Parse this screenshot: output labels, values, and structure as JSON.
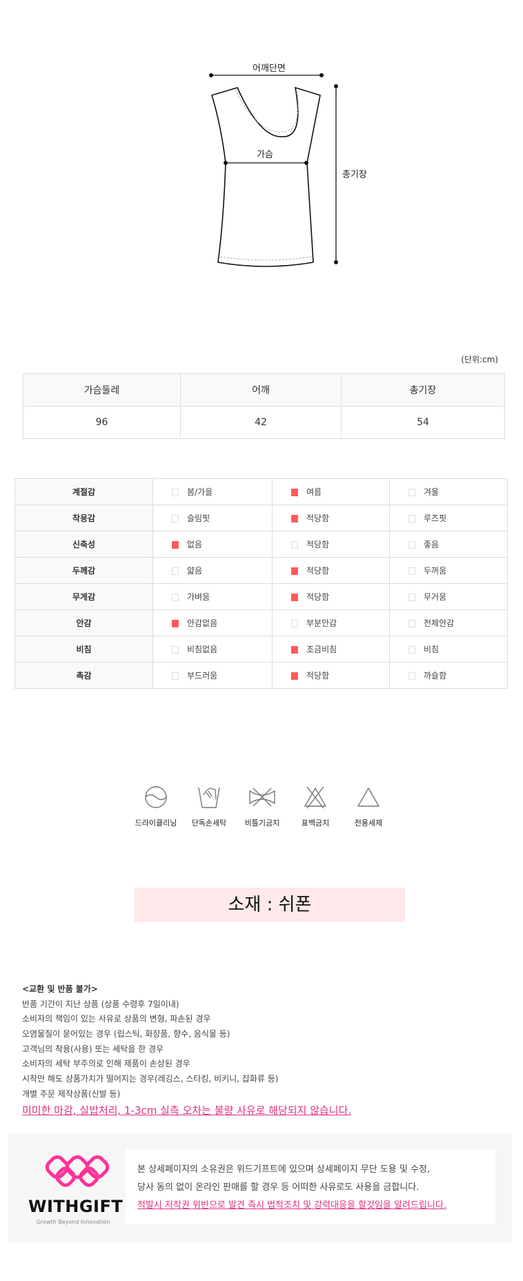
{
  "diagram": {
    "shoulder": "어깨단면",
    "chest": "가슴",
    "length": "총기장"
  },
  "size_table": {
    "unit": "(단위:cm)",
    "headers": [
      "가슴둘레",
      "어깨",
      "총기장"
    ],
    "values": [
      "96",
      "42",
      "54"
    ]
  },
  "spec_table": {
    "check_color": "#ff5a5a",
    "rows": [
      {
        "label": "계절감",
        "options": [
          "봄/가을",
          "여름",
          "겨울"
        ],
        "selected": 1
      },
      {
        "label": "착용감",
        "options": [
          "슬림핏",
          "적당함",
          "루즈핏"
        ],
        "selected": 1
      },
      {
        "label": "신축성",
        "options": [
          "없음",
          "적당함",
          "좋음"
        ],
        "selected": 0
      },
      {
        "label": "두께감",
        "options": [
          "얇음",
          "적당함",
          "두꺼움"
        ],
        "selected": 1
      },
      {
        "label": "무게감",
        "options": [
          "가벼움",
          "적당함",
          "무거움"
        ],
        "selected": 1
      },
      {
        "label": "안감",
        "options": [
          "안감없음",
          "부분안감",
          "전체안감"
        ],
        "selected": 0
      },
      {
        "label": "비침",
        "options": [
          "비침없음",
          "조금비침",
          "비침"
        ],
        "selected": 1
      },
      {
        "label": "촉감",
        "options": [
          "부드러움",
          "적당함",
          "까슬함"
        ],
        "selected": 1
      }
    ]
  },
  "care": [
    {
      "icon": "dry-clean-icon",
      "label": "드라이클리닝"
    },
    {
      "icon": "hand-wash-icon",
      "label": "단독손세탁"
    },
    {
      "icon": "no-wring-icon",
      "label": "비틀기금지"
    },
    {
      "icon": "no-bleach-icon",
      "label": "표백금지"
    },
    {
      "icon": "detergent-icon",
      "label": "전용세제"
    }
  ],
  "material": "소재 : 쉬폰",
  "notice": {
    "title": "<교환 및 반품 불가>",
    "lines": [
      "반품 기간이 지난 상품 (상품 수령후 7일이내)",
      "소비자의 책임이 있는 사유로 상품의 변형, 파손된 경우",
      "오염물질이 묻어있는 경우 (립스틱, 화장품, 향수, 음식물 등)",
      "고객님의 착용(사용) 또는 세탁을 한 경우",
      "소비자의 세탁 부주의로 인해 제품이 손상된 경우",
      "시착만 해도 상품가치가 떨어지는 경우(레깅스, 스타킹, 비키니, 잡화류 등)",
      "개별 주문 제작상품(신발 등)"
    ],
    "highlight": "미미한 마감, 실밥처리, 1-3cm 실측 오차는 불량 사유로 해당되지 않습니다."
  },
  "footer": {
    "brand": "WITHGIFT",
    "tagline": "Growth Beyond Innovation",
    "brand_color": "#ff3399",
    "lines": [
      "본 상세페이지의 소유권은 위드기프트에 있으며 상세페이지 무단 도용 및 수정,",
      "당사 동의 없이 온라인 판매를 할 경우 등 어떠한 사유로도 사용을 금합니다."
    ],
    "warning": "적발시 저작권 위반으로 발견 즉시 법적조치 및 강력대응을 할것임을 알려드립니다."
  }
}
